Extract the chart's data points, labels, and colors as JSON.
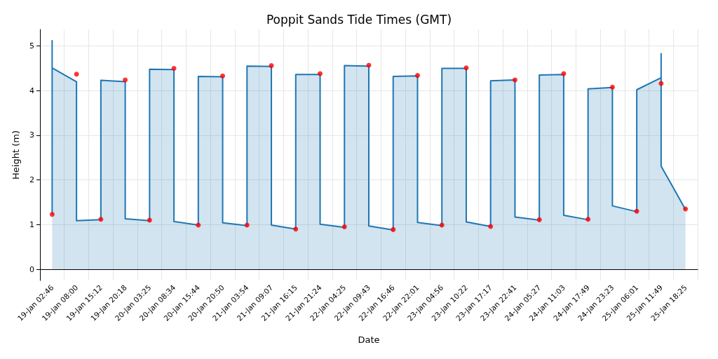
{
  "chart_data": {
    "type": "area",
    "title": "Poppit Sands Tide Times (GMT)",
    "xlabel": "Date",
    "ylabel": "Height (m)",
    "categories": [
      "19-Jan 02:46",
      "19-Jan 08:00",
      "19-Jan 15:12",
      "19-Jan 20:18",
      "20-Jan 03:25",
      "20-Jan 08:34",
      "20-Jan 15:44",
      "20-Jan 20:50",
      "21-Jan 03:54",
      "21-Jan 09:07",
      "21-Jan 16:15",
      "21-Jan 21:24",
      "22-Jan 04:25",
      "22-Jan 09:43",
      "22-Jan 16:46",
      "22-Jan 22:01",
      "23-Jan 04:56",
      "23-Jan 10:22",
      "23-Jan 17:17",
      "23-Jan 22:41",
      "24-Jan 05:27",
      "24-Jan 11:03",
      "24-Jan 17:49",
      "24-Jan 23:23",
      "25-Jan 06:01",
      "25-Jan 11:49",
      "25-Jan 18:25"
    ],
    "series": [
      {
        "color": "#1f77b4",
        "marker": "none",
        "x": [
          "19-Jan 02:46",
          "19-Jan 02:46",
          "19-Jan 02:46",
          "19-Jan 08:00",
          "19-Jan 08:00",
          "19-Jan 15:12",
          "19-Jan 15:12",
          "19-Jan 20:18",
          "19-Jan 20:18",
          "20-Jan 03:25",
          "20-Jan 03:25",
          "20-Jan 08:34",
          "20-Jan 08:34",
          "20-Jan 15:44",
          "20-Jan 15:44",
          "20-Jan 20:50",
          "20-Jan 20:50",
          "21-Jan 03:54",
          "21-Jan 03:54",
          "21-Jan 09:07",
          "21-Jan 09:07",
          "21-Jan 16:15",
          "21-Jan 16:15",
          "21-Jan 21:24",
          "21-Jan 21:24",
          "22-Jan 04:25",
          "22-Jan 04:25",
          "22-Jan 09:43",
          "22-Jan 09:43",
          "22-Jan 16:46",
          "22-Jan 16:46",
          "22-Jan 22:01",
          "22-Jan 22:01",
          "23-Jan 04:56",
          "23-Jan 04:56",
          "23-Jan 10:22",
          "23-Jan 10:22",
          "23-Jan 17:17",
          "23-Jan 17:17",
          "23-Jan 22:41",
          "23-Jan 22:41",
          "24-Jan 05:27",
          "24-Jan 05:27",
          "24-Jan 11:03",
          "24-Jan 11:03",
          "24-Jan 17:49",
          "24-Jan 17:49",
          "24-Jan 23:23",
          "24-Jan 23:23",
          "25-Jan 06:01",
          "25-Jan 06:01",
          "25-Jan 11:49",
          "25-Jan 11:49",
          "25-Jan 11:49",
          "25-Jan 18:25"
        ],
        "values": [
          1.23,
          5.12,
          4.51,
          4.2,
          1.09,
          1.11,
          4.23,
          4.2,
          1.13,
          1.09,
          4.48,
          4.47,
          1.07,
          0.99,
          4.32,
          4.31,
          1.04,
          0.98,
          4.55,
          4.54,
          0.99,
          0.9,
          4.36,
          4.36,
          1.01,
          0.94,
          4.56,
          4.55,
          0.97,
          0.88,
          4.32,
          4.33,
          1.05,
          0.98,
          4.5,
          4.5,
          1.06,
          0.96,
          4.22,
          4.24,
          1.17,
          1.1,
          4.35,
          4.36,
          1.21,
          1.11,
          4.04,
          4.07,
          1.42,
          1.29,
          4.02,
          4.29,
          4.83,
          2.31,
          1.34
        ]
      },
      {
        "type": "scatter",
        "color": "#ff0000",
        "marker": "circle",
        "values": [
          1.23,
          4.37,
          1.12,
          4.24,
          1.1,
          4.5,
          0.99,
          4.33,
          0.99,
          4.56,
          0.9,
          4.38,
          0.95,
          4.57,
          0.89,
          4.34,
          0.99,
          4.51,
          0.96,
          4.24,
          1.11,
          4.38,
          1.12,
          4.08,
          1.3,
          4.16,
          1.35
        ]
      }
    ],
    "ylim": [
      -0.25,
      5.37
    ],
    "yticks": [
      0,
      1,
      2,
      3,
      4,
      5
    ],
    "grid": true
  }
}
